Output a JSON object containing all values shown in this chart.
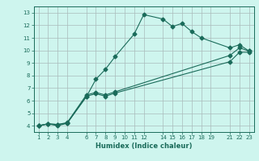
{
  "title": "",
  "xlabel": "Humidex (Indice chaleur)",
  "bg_color": "#cef5ee",
  "grid_color": "#aabbbb",
  "line_color": "#1a6b5a",
  "xlim": [
    0.5,
    23.5
  ],
  "ylim": [
    3.5,
    13.5
  ],
  "xticks": [
    1,
    2,
    3,
    4,
    6,
    7,
    8,
    9,
    10,
    11,
    12,
    14,
    15,
    16,
    17,
    18,
    19,
    21,
    22,
    23
  ],
  "yticks": [
    4,
    5,
    6,
    7,
    8,
    9,
    10,
    11,
    12,
    13
  ],
  "line1_x": [
    1,
    2,
    3,
    4,
    6,
    7,
    8,
    9,
    11,
    12,
    14,
    15,
    16,
    17,
    18,
    21,
    22,
    23
  ],
  "line1_y": [
    4.0,
    4.15,
    4.0,
    4.2,
    6.3,
    7.7,
    8.5,
    9.5,
    11.3,
    12.85,
    12.5,
    11.9,
    12.15,
    11.5,
    11.0,
    10.2,
    10.45,
    9.95
  ],
  "line2_x": [
    1,
    2,
    3,
    4,
    6,
    7,
    8,
    9,
    21,
    22,
    23
  ],
  "line2_y": [
    4.0,
    4.15,
    4.1,
    4.2,
    6.35,
    6.55,
    6.35,
    6.6,
    9.1,
    9.85,
    9.85
  ],
  "line3_x": [
    1,
    2,
    3,
    4,
    6,
    7,
    8,
    9,
    21,
    22,
    23
  ],
  "line3_y": [
    4.0,
    4.15,
    4.1,
    4.25,
    6.45,
    6.65,
    6.45,
    6.7,
    9.6,
    10.2,
    9.95
  ],
  "marker_size": 2.5,
  "line_width": 0.8,
  "tick_fontsize": 5.0,
  "label_fontsize": 6.0
}
